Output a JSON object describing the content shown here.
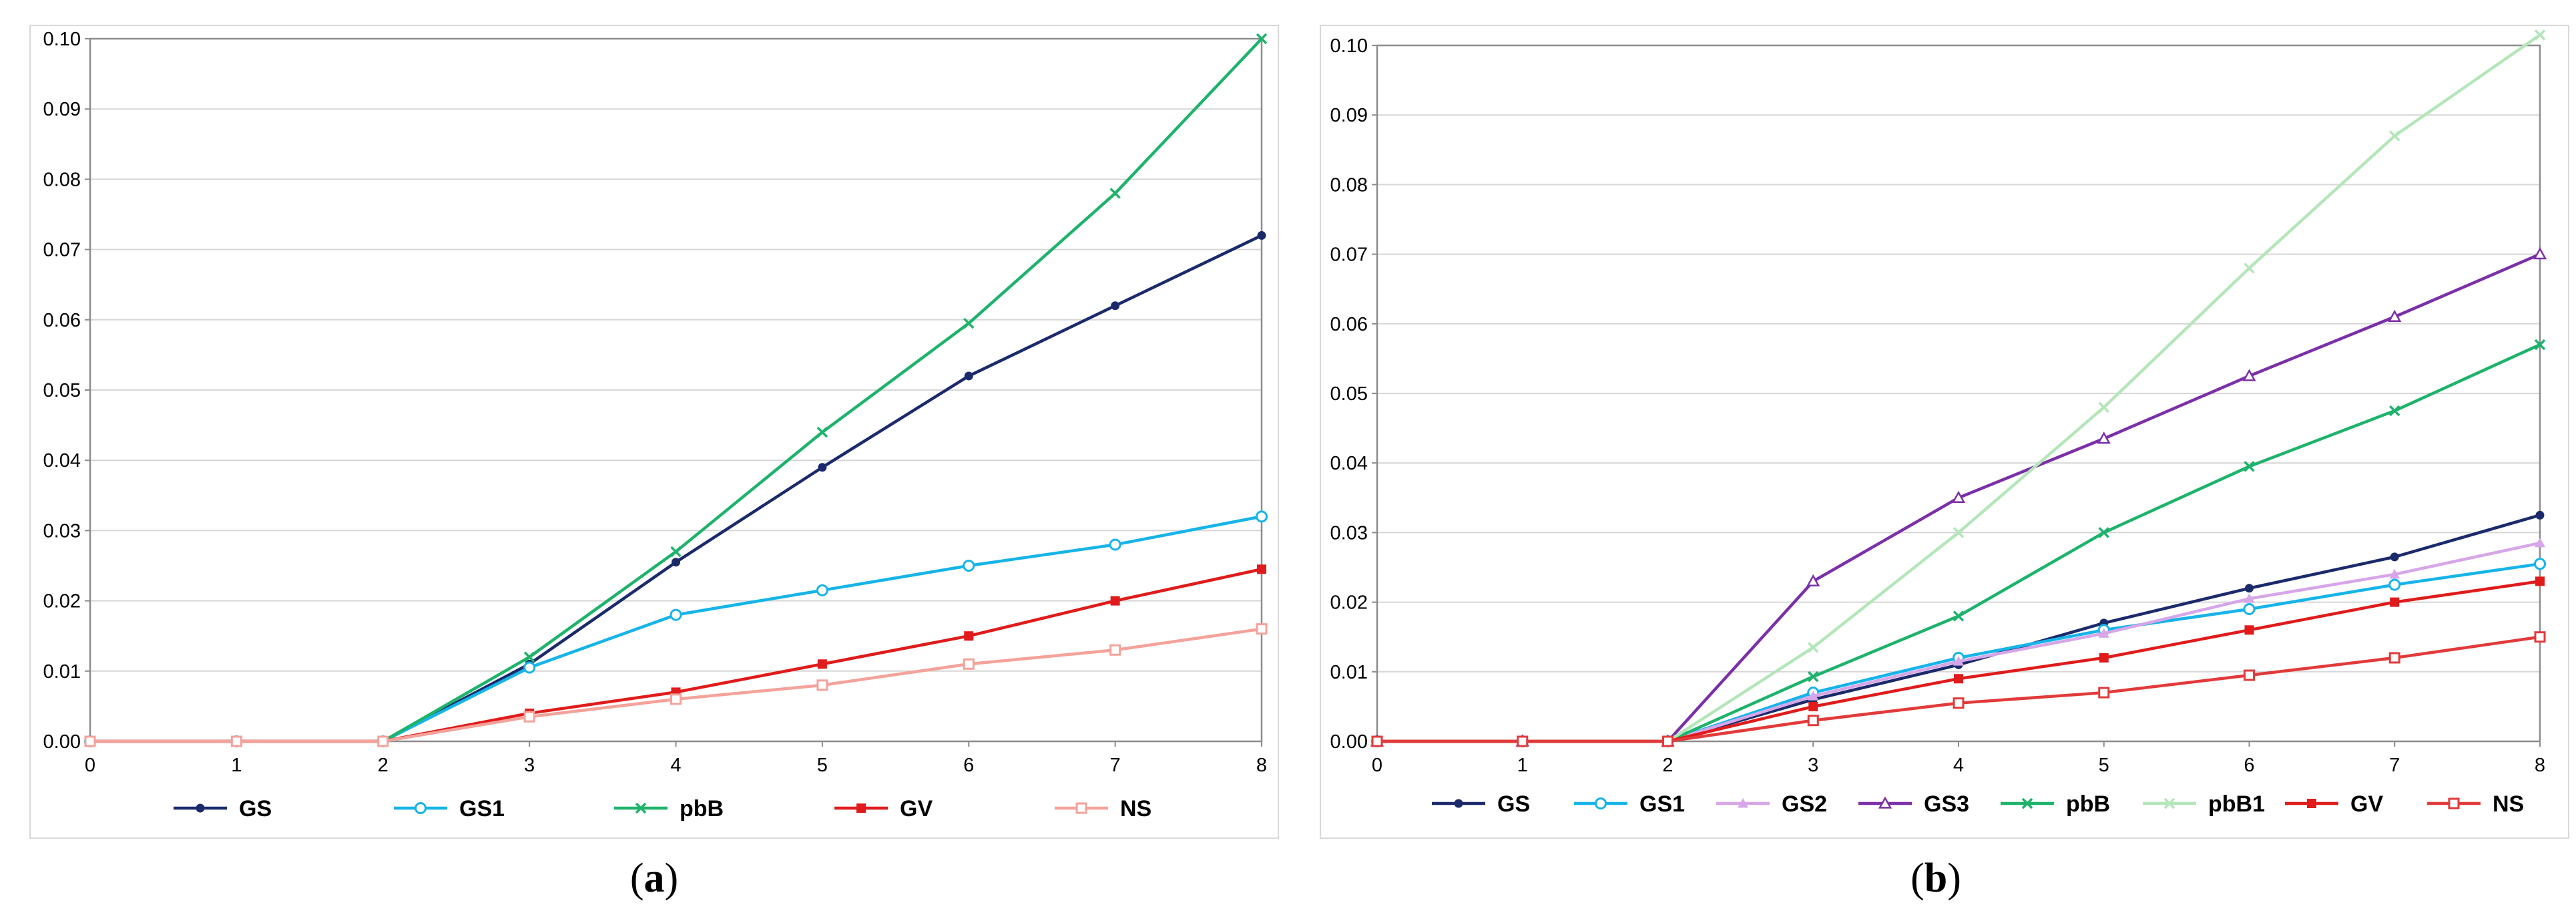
{
  "chart_data": [
    {
      "panel": "a",
      "type": "line",
      "caption": {
        "open": "(",
        "letter": "a",
        "close": ")"
      },
      "x": [
        0,
        1,
        2,
        3,
        4,
        5,
        6,
        7,
        8
      ],
      "xlim": [
        0,
        8
      ],
      "ylim": [
        0,
        0.1
      ],
      "x_ticks": [
        "0",
        "1",
        "2",
        "3",
        "4",
        "5",
        "6",
        "7",
        "8"
      ],
      "y_ticks": [
        "0.00",
        "0.01",
        "0.02",
        "0.03",
        "0.04",
        "0.05",
        "0.06",
        "0.07",
        "0.08",
        "0.09",
        "0.10"
      ],
      "grid": "horizontal",
      "legend_position": "bottom",
      "series": [
        {
          "name": "GS",
          "color": "#1b2a6b",
          "marker": "dot",
          "values": [
            0,
            0,
            0,
            0.011,
            0.0255,
            0.039,
            0.052,
            0.062,
            0.072
          ]
        },
        {
          "name": "GS1",
          "color": "#16b4e8",
          "marker": "circle-open",
          "values": [
            0,
            0,
            0,
            0.0105,
            0.018,
            0.0215,
            0.025,
            0.028,
            0.032
          ]
        },
        {
          "name": "pbB",
          "color": "#1db36b",
          "marker": "x",
          "values": [
            0,
            0,
            0,
            0.012,
            0.027,
            0.044,
            0.0595,
            0.078,
            0.1
          ]
        },
        {
          "name": "GV",
          "color": "#e01b1b",
          "marker": "square",
          "values": [
            0,
            0,
            0,
            0.004,
            0.007,
            0.011,
            0.015,
            0.02,
            0.0245
          ]
        },
        {
          "name": "NS",
          "color": "#f4a29a",
          "marker": "square-open",
          "values": [
            0,
            0,
            0,
            0.0035,
            0.006,
            0.008,
            0.011,
            0.013,
            0.016
          ]
        }
      ]
    },
    {
      "panel": "b",
      "type": "line",
      "caption": {
        "open": "(",
        "letter": "b",
        "close": ")"
      },
      "x": [
        0,
        1,
        2,
        3,
        4,
        5,
        6,
        7,
        8
      ],
      "xlim": [
        0,
        8
      ],
      "ylim": [
        0,
        0.1
      ],
      "x_ticks": [
        "0",
        "1",
        "2",
        "3",
        "4",
        "5",
        "6",
        "7",
        "8"
      ],
      "y_ticks": [
        "0.00",
        "0.01",
        "0.02",
        "0.03",
        "0.04",
        "0.05",
        "0.06",
        "0.07",
        "0.08",
        "0.09",
        "0.10"
      ],
      "grid": "horizontal",
      "legend_position": "bottom",
      "series": [
        {
          "name": "GS",
          "color": "#1b2a6b",
          "marker": "dot",
          "values": [
            0,
            0,
            0,
            0.006,
            0.011,
            0.017,
            0.022,
            0.0265,
            0.0325
          ]
        },
        {
          "name": "GS1",
          "color": "#16b4e8",
          "marker": "circle-open",
          "values": [
            0,
            0,
            0,
            0.007,
            0.012,
            0.016,
            0.019,
            0.0225,
            0.0255
          ]
        },
        {
          "name": "GS2",
          "color": "#d7a6e8",
          "marker": "triangle",
          "values": [
            0,
            0,
            0,
            0.0065,
            0.0115,
            0.0155,
            0.0205,
            0.024,
            0.0285
          ]
        },
        {
          "name": "GS3",
          "color": "#7b2fa8",
          "marker": "triangle-open",
          "values": [
            0,
            0,
            0,
            0.023,
            0.035,
            0.0435,
            0.0525,
            0.061,
            0.07
          ]
        },
        {
          "name": "pbB",
          "color": "#1db36b",
          "marker": "x",
          "values": [
            0,
            0,
            0,
            0.0093,
            0.018,
            0.03,
            0.0395,
            0.0475,
            0.057
          ]
        },
        {
          "name": "pbB1",
          "color": "#b4e6b9",
          "marker": "x-light",
          "values": [
            0,
            0,
            0,
            0.0135,
            0.03,
            0.048,
            0.068,
            0.087,
            0.1015
          ]
        },
        {
          "name": "GV",
          "color": "#e01b1b",
          "marker": "square",
          "values": [
            0,
            0,
            0,
            0.005,
            0.009,
            0.012,
            0.016,
            0.02,
            0.023
          ]
        },
        {
          "name": "NS",
          "color": "#e23a3a",
          "marker": "square-open",
          "values": [
            0,
            0,
            0,
            0.003,
            0.0055,
            0.007,
            0.0095,
            0.012,
            0.015
          ]
        }
      ]
    }
  ]
}
